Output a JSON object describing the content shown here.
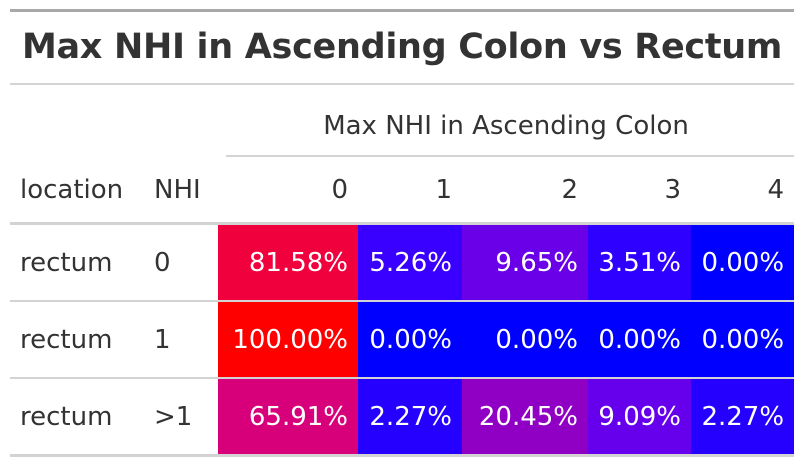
{
  "table": {
    "title": "Max NHI in Ascending Colon vs Rectum",
    "spanner": "Max NHI in Ascending Colon",
    "stub_headers": [
      "location",
      "NHI"
    ],
    "columns": [
      "0",
      "1",
      "2",
      "3",
      "4"
    ],
    "rows": [
      {
        "location": "rectum",
        "nhi": "0",
        "cells": [
          {
            "text": "81.58%",
            "color": "#f0003c"
          },
          {
            "text": "5.26%",
            "color": "#3a00ff"
          },
          {
            "text": "9.65%",
            "color": "#6a00e8"
          },
          {
            "text": "3.51%",
            "color": "#2e00ff"
          },
          {
            "text": "0.00%",
            "color": "#0000ff"
          }
        ]
      },
      {
        "location": "rectum",
        "nhi": "1",
        "cells": [
          {
            "text": "100.00%",
            "color": "#ff0000"
          },
          {
            "text": "0.00%",
            "color": "#0000ff"
          },
          {
            "text": "0.00%",
            "color": "#0000ff"
          },
          {
            "text": "0.00%",
            "color": "#0000ff"
          },
          {
            "text": "0.00%",
            "color": "#0000ff"
          }
        ]
      },
      {
        "location": "rectum",
        "nhi": ">1",
        "cells": [
          {
            "text": "65.91%",
            "color": "#d8007a"
          },
          {
            "text": "2.27%",
            "color": "#2600ff"
          },
          {
            "text": "20.45%",
            "color": "#9000c4"
          },
          {
            "text": "9.09%",
            "color": "#6600ec"
          },
          {
            "text": "2.27%",
            "color": "#2600ff"
          }
        ]
      }
    ]
  }
}
